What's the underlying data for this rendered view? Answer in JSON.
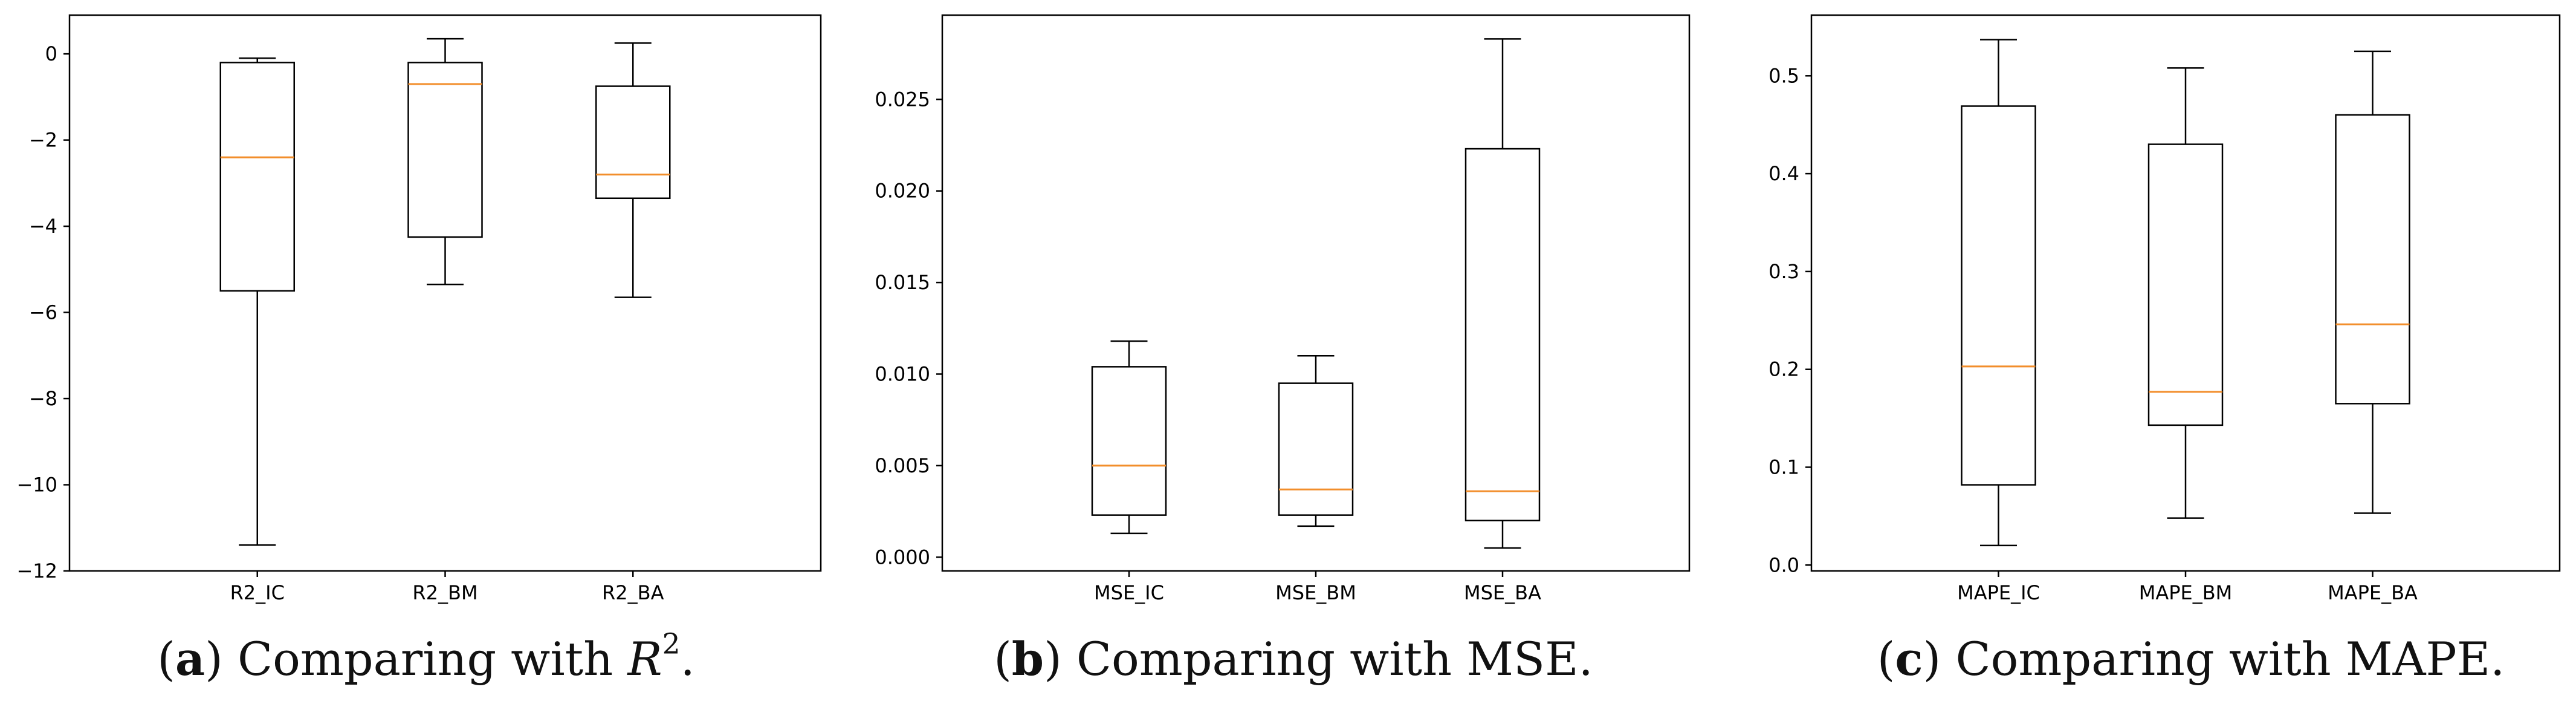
{
  "colors": {
    "box": "#000000",
    "median": "#f28e2b",
    "background": "#ffffff"
  },
  "chart_data": [
    {
      "id": "a",
      "type": "boxplot",
      "title": "",
      "xlabel": "",
      "ylabel": "",
      "categories": [
        "R2_IC",
        "R2_BM",
        "R2_BA"
      ],
      "boxes": [
        {
          "label": "R2_IC",
          "whisker_low": -11.4,
          "q1": -5.5,
          "median": -2.4,
          "q3": -0.2,
          "whisker_high": -0.1
        },
        {
          "label": "R2_BM",
          "whisker_low": -5.35,
          "q1": -4.25,
          "median": -0.7,
          "q3": -0.2,
          "whisker_high": 0.35
        },
        {
          "label": "R2_BA",
          "whisker_low": -5.65,
          "q1": -3.35,
          "median": -2.8,
          "q3": -0.75,
          "whisker_high": 0.25
        }
      ],
      "ylim": [
        -12,
        0.9
      ],
      "yticks": [
        -12,
        -10,
        -8,
        -6,
        -4,
        -2,
        0
      ],
      "ytick_labels": [
        "−12",
        "−10",
        "−8",
        "−6",
        "−4",
        "−2",
        "0"
      ]
    },
    {
      "id": "b",
      "type": "boxplot",
      "title": "",
      "xlabel": "",
      "ylabel": "",
      "categories": [
        "MSE_IC",
        "MSE_BM",
        "MSE_BA"
      ],
      "boxes": [
        {
          "label": "MSE_IC",
          "whisker_low": 0.0013,
          "q1": 0.0023,
          "median": 0.005,
          "q3": 0.0104,
          "whisker_high": 0.0118
        },
        {
          "label": "MSE_BM",
          "whisker_low": 0.0017,
          "q1": 0.0023,
          "median": 0.0037,
          "q3": 0.0095,
          "whisker_high": 0.011
        },
        {
          "label": "MSE_BA",
          "whisker_low": 0.0005,
          "q1": 0.002,
          "median": 0.0036,
          "q3": 0.0223,
          "whisker_high": 0.0283
        }
      ],
      "ylim": [
        -0.00075,
        0.0296
      ],
      "yticks": [
        0.0,
        0.005,
        0.01,
        0.015,
        0.02,
        0.025
      ],
      "ytick_labels": [
        "0.000",
        "0.005",
        "0.010",
        "0.015",
        "0.020",
        "0.025"
      ]
    },
    {
      "id": "c",
      "type": "boxplot",
      "title": "",
      "xlabel": "",
      "ylabel": "",
      "categories": [
        "MAPE_IC",
        "MAPE_BM",
        "MAPE_BA"
      ],
      "boxes": [
        {
          "label": "MAPE_IC",
          "whisker_low": 0.02,
          "q1": 0.082,
          "median": 0.203,
          "q3": 0.469,
          "whisker_high": 0.537
        },
        {
          "label": "MAPE_BM",
          "whisker_low": 0.048,
          "q1": 0.143,
          "median": 0.177,
          "q3": 0.43,
          "whisker_high": 0.508
        },
        {
          "label": "MAPE_BA",
          "whisker_low": 0.053,
          "q1": 0.165,
          "median": 0.246,
          "q3": 0.46,
          "whisker_high": 0.525
        }
      ],
      "ylim": [
        -0.006,
        0.562
      ],
      "yticks": [
        0.0,
        0.1,
        0.2,
        0.3,
        0.4,
        0.5
      ],
      "ytick_labels": [
        "0.0",
        "0.1",
        "0.2",
        "0.3",
        "0.4",
        "0.5"
      ]
    }
  ],
  "captions": {
    "a": {
      "letter": "a",
      "text": "Comparing with",
      "math": "R",
      "sup": "2",
      "end": "."
    },
    "b": {
      "letter": "b",
      "text": "Comparing with MSE."
    },
    "c": {
      "letter": "c",
      "text": "Comparing with MAPE."
    }
  }
}
